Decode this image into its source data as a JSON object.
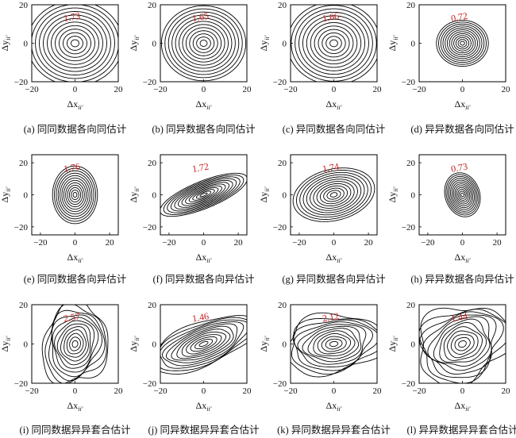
{
  "figure": {
    "panels": [
      {
        "caption": "(a) 同同数据各向同估计",
        "value_label": "1.73",
        "shape": "iso",
        "rx": 22,
        "ry": 22,
        "angle": 0,
        "noise": 0,
        "axis": {
          "xticks": [
            "−20",
            "0",
            "20"
          ],
          "yticks": [
            "20",
            "0",
            "−20"
          ]
        }
      },
      {
        "caption": "(b) 同异数据各向同估计",
        "value_label": "1.65",
        "shape": "iso",
        "rx": 19.5,
        "ry": 19.5,
        "angle": 0,
        "noise": 0,
        "axis": {
          "xticks": [
            "−20",
            "0",
            "20"
          ],
          "yticks": [
            "20",
            "0",
            "−20"
          ]
        }
      },
      {
        "caption": "(c) 异同数据各向同估计",
        "value_label": "1.66",
        "shape": "iso",
        "rx": 21.5,
        "ry": 21.5,
        "angle": 0,
        "noise": 0,
        "axis": {
          "xticks": [
            "−20",
            "0",
            "20"
          ],
          "yticks": [
            "20",
            "0",
            "−20"
          ]
        }
      },
      {
        "caption": "(d) 异异数据各向同估计",
        "value_label": "0.72",
        "shape": "iso",
        "rx": 12,
        "ry": 12,
        "angle": 0,
        "noise": 0,
        "axis": {
          "xticks": [
            "−20",
            "0",
            "20"
          ],
          "yticks": [
            "20",
            "0",
            "−20"
          ]
        }
      },
      {
        "caption": "(e) 同同数据各向异估计",
        "value_label": "1.76",
        "shape": "ellipse",
        "rx": 13,
        "ry": 18,
        "angle": 0,
        "noise": 0,
        "axis": {
          "xticks": [
            "−20",
            "0",
            "20"
          ],
          "yticks": [
            "20",
            "0",
            "−20"
          ]
        }
      },
      {
        "caption": "(f) 同异数据各向异估计",
        "value_label": "1.72",
        "shape": "ellipse",
        "rx": 27,
        "ry": 8.5,
        "angle": 22,
        "noise": 0,
        "axis": {
          "xticks": [
            "−20",
            "0",
            "20"
          ],
          "yticks": [
            "20",
            "0",
            "−20"
          ]
        }
      },
      {
        "caption": "(g) 异同数据各向异估计",
        "value_label": "1.74",
        "shape": "ellipse",
        "rx": 24,
        "ry": 16,
        "angle": 14,
        "noise": 0,
        "axis": {
          "xticks": [
            "−20",
            "0",
            "20"
          ],
          "yticks": [
            "20",
            "0",
            "−20"
          ]
        }
      },
      {
        "caption": "(h) 异异数据各向异估计",
        "value_label": "0.73",
        "shape": "ellipse",
        "rx": 10,
        "ry": 14,
        "angle": 18,
        "noise": 0,
        "axis": {
          "xticks": [
            "−20",
            "0",
            "20"
          ],
          "yticks": [
            "20",
            "0",
            "−20"
          ]
        }
      },
      {
        "caption": "(i) 同同数据异异套合估计",
        "value_label": "2.57",
        "shape": "irregular",
        "rx": 15,
        "ry": 21,
        "angle": -12,
        "noise": 0.1,
        "axis": {
          "xticks": [
            "−20",
            "0",
            "20"
          ],
          "yticks": [
            "20",
            "0",
            "−20"
          ]
        }
      },
      {
        "caption": "(j) 同异数据异异套合估计",
        "value_label": "1.46",
        "shape": "irregular",
        "rx": 26,
        "ry": 11,
        "angle": 22,
        "noise": 0.06,
        "axis": {
          "xticks": [
            "−20",
            "0",
            "20"
          ],
          "yticks": [
            "20",
            "0",
            "−20"
          ]
        }
      },
      {
        "caption": "(k) 异同数据异异套合估计",
        "value_label": "2.12",
        "shape": "irregular",
        "rx": 23,
        "ry": 15,
        "angle": 8,
        "noise": 0.1,
        "axis": {
          "xticks": [
            "−20",
            "0",
            "20"
          ],
          "yticks": [
            "20",
            "0",
            "−20"
          ]
        }
      },
      {
        "caption": "(l) 异异数据异异套合估计",
        "value_label": "1.44",
        "shape": "irregular",
        "rx": 22,
        "ry": 19,
        "angle": 25,
        "noise": 0.13,
        "axis": {
          "xticks": [
            "−20",
            "0",
            "20"
          ],
          "yticks": [
            "20",
            "0",
            "−20"
          ]
        }
      }
    ],
    "axis_labels": {
      "x": "Δx",
      "x_sub": "ii′",
      "y": "Δy",
      "y_sub": "ii′"
    }
  },
  "chart_data": [
    {
      "type": "contour",
      "title": "(a) 同同数据各向同估计",
      "label": "1.73",
      "xlim": [
        -20,
        20
      ],
      "ylim": [
        -20,
        20
      ]
    },
    {
      "type": "contour",
      "title": "(b) 同异数据各向同估计",
      "label": "1.65",
      "xlim": [
        -20,
        20
      ],
      "ylim": [
        -20,
        20
      ]
    },
    {
      "type": "contour",
      "title": "(c) 异同数据各向同估计",
      "label": "1.66",
      "xlim": [
        -20,
        20
      ],
      "ylim": [
        -20,
        20
      ]
    },
    {
      "type": "contour",
      "title": "(d) 异异数据各向同估计",
      "label": "0.72",
      "xlim": [
        -20,
        20
      ],
      "ylim": [
        -20,
        20
      ]
    },
    {
      "type": "contour",
      "title": "(e) 同同数据各向异估计",
      "label": "1.76",
      "xlim": [
        -25,
        25
      ],
      "ylim": [
        -25,
        25
      ]
    },
    {
      "type": "contour",
      "title": "(f) 同异数据各向异估计",
      "label": "1.72",
      "xlim": [
        -25,
        25
      ],
      "ylim": [
        -25,
        25
      ]
    },
    {
      "type": "contour",
      "title": "(g) 异同数据各向异估计",
      "label": "1.74",
      "xlim": [
        -25,
        25
      ],
      "ylim": [
        -25,
        25
      ]
    },
    {
      "type": "contour",
      "title": "(h) 异异数据各向异估计",
      "label": "0.73",
      "xlim": [
        -25,
        25
      ],
      "ylim": [
        -25,
        25
      ]
    },
    {
      "type": "contour",
      "title": "(i) 同同数据异异套合估计",
      "label": "2.57",
      "xlim": [
        -20,
        20
      ],
      "ylim": [
        -20,
        20
      ]
    },
    {
      "type": "contour",
      "title": "(j) 同异数据异异套合估计",
      "label": "1.46",
      "xlim": [
        -20,
        20
      ],
      "ylim": [
        -20,
        20
      ]
    },
    {
      "type": "contour",
      "title": "(k) 异同数据异异套合估计",
      "label": "2.12",
      "xlim": [
        -20,
        20
      ],
      "ylim": [
        -20,
        20
      ]
    },
    {
      "type": "contour",
      "title": "(l) 异异数据异异套合估计",
      "label": "1.44",
      "xlim": [
        -20,
        20
      ],
      "ylim": [
        -20,
        20
      ]
    }
  ]
}
